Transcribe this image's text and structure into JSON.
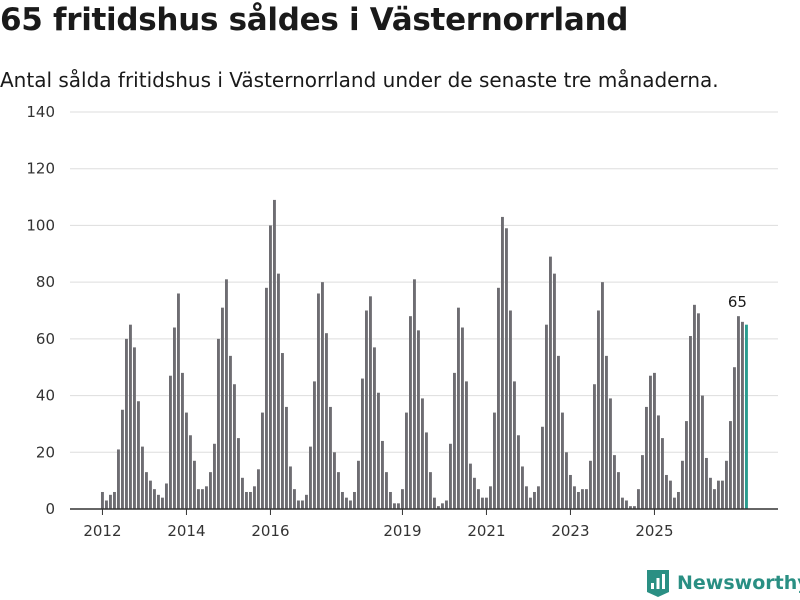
{
  "title": "65 fritidshus såldes i Västernorrland",
  "subtitle": "Antal sålda fritidshus i Västernorrland under de senaste tre månaderna.",
  "brand": {
    "name": "Newsworthy",
    "icon": "newsworthy-logo-icon"
  },
  "colors": {
    "bar": "#6e6d72",
    "highlight": "#2a9d8f",
    "grid": "#dddddd",
    "axis": "#333333"
  },
  "chart_data": {
    "type": "bar",
    "title": "65 fritidshus såldes i Västernorrland",
    "xlabel": "",
    "ylabel": "",
    "ylim": [
      0,
      140
    ],
    "yticks": [
      "0",
      "20",
      "40",
      "60",
      "80",
      "100",
      "120",
      "140"
    ],
    "xticks": [
      {
        "label": "2012",
        "index": 0
      },
      {
        "label": "2014",
        "index": 21
      },
      {
        "label": "2016",
        "index": 42
      },
      {
        "label": "2019",
        "index": 75
      },
      {
        "label": "2021",
        "index": 96
      },
      {
        "label": "2023",
        "index": 117
      },
      {
        "label": "2025",
        "index": 138
      }
    ],
    "values": [
      6,
      3,
      5,
      6,
      21,
      35,
      60,
      65,
      57,
      38,
      22,
      13,
      10,
      7,
      5,
      4,
      9,
      47,
      64,
      76,
      48,
      34,
      26,
      17,
      7,
      7,
      8,
      13,
      23,
      60,
      71,
      81,
      54,
      44,
      25,
      11,
      6,
      6,
      8,
      14,
      34,
      78,
      100,
      109,
      83,
      55,
      36,
      15,
      7,
      3,
      3,
      5,
      22,
      45,
      76,
      80,
      62,
      36,
      20,
      13,
      6,
      4,
      3,
      6,
      17,
      46,
      70,
      75,
      57,
      41,
      24,
      13,
      6,
      2,
      2,
      7,
      34,
      68,
      81,
      63,
      39,
      27,
      13,
      4,
      1,
      2,
      3,
      23,
      48,
      71,
      64,
      45,
      16,
      11,
      7,
      4,
      4,
      8,
      34,
      78,
      103,
      99,
      70,
      45,
      26,
      15,
      8,
      4,
      6,
      8,
      29,
      65,
      89,
      83,
      54,
      34,
      20,
      12,
      8,
      6,
      7,
      7,
      17,
      44,
      70,
      80,
      54,
      39,
      19,
      13,
      4,
      3,
      1,
      1,
      7,
      19,
      36,
      47,
      48,
      33,
      25,
      12,
      10,
      4,
      6,
      17,
      31,
      61,
      72,
      69,
      40,
      18,
      11,
      7,
      10,
      10,
      17,
      31,
      50,
      68,
      66,
      65
    ],
    "highlight_last": true,
    "annotation": {
      "text": "65",
      "index": 159
    }
  }
}
